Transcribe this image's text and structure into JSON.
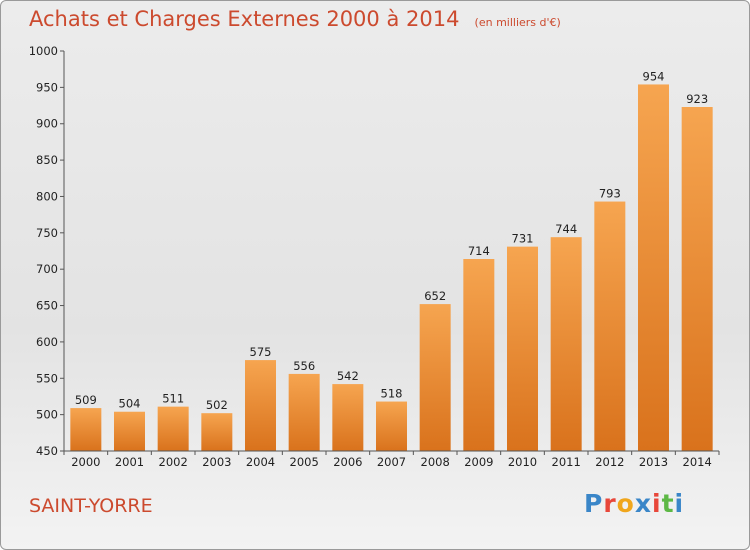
{
  "chart_data": {
    "type": "bar",
    "title": "Achats et Charges Externes 2000 à 2014",
    "subtitle": "(en milliers d'€)",
    "categories": [
      "2000",
      "2001",
      "2002",
      "2003",
      "2004",
      "2005",
      "2006",
      "2007",
      "2008",
      "2009",
      "2010",
      "2011",
      "2012",
      "2013",
      "2014"
    ],
    "values": [
      509,
      504,
      511,
      502,
      575,
      556,
      542,
      518,
      652,
      714,
      731,
      744,
      793,
      954,
      923
    ],
    "ylim": [
      450,
      1000
    ],
    "yticks": [
      450,
      500,
      550,
      600,
      650,
      700,
      750,
      800,
      850,
      900,
      950,
      1000
    ],
    "grid": false,
    "bar_color_top": "#f6a550",
    "bar_color_bottom": "#d9721c"
  },
  "footer": {
    "location": "SAINT-YORRE",
    "brand": "Proxiti",
    "brand_colors": [
      "#3a86c8",
      "#e8473a",
      "#f0a61c",
      "#3a86c8",
      "#e8473a",
      "#5db845",
      "#3a86c8"
    ]
  }
}
